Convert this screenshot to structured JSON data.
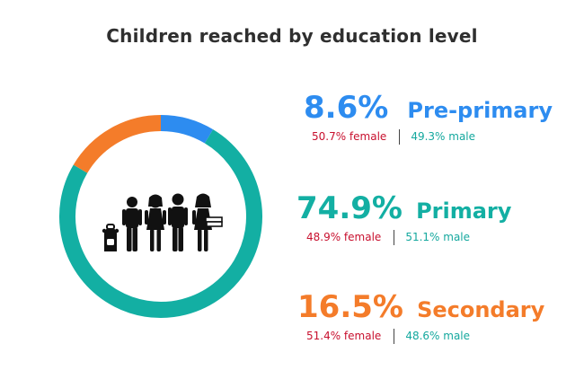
{
  "chart_data": {
    "type": "pie",
    "title": "Children reached by education level",
    "slices": [
      {
        "label": "Pre-primary",
        "value": 8.6,
        "value_label": "8.6%",
        "color": "#2d8cf0",
        "female_label": "50.7% female",
        "male_label": "49.3% male"
      },
      {
        "label": "Primary",
        "value": 74.9,
        "value_label": "74.9%",
        "color": "#13afa3",
        "female_label": "48.9% female",
        "male_label": "51.1% male"
      },
      {
        "label": "Secondary",
        "value": 16.5,
        "value_label": "16.5%",
        "color": "#f47c2a",
        "female_label": "51.4% female",
        "male_label": "48.6% male"
      }
    ]
  },
  "colors": {
    "female": "#c8102e",
    "male": "#14a89e",
    "title": "#2f2f2f",
    "icon": "#111111"
  },
  "center_icon": "children-with-backpack-icon"
}
